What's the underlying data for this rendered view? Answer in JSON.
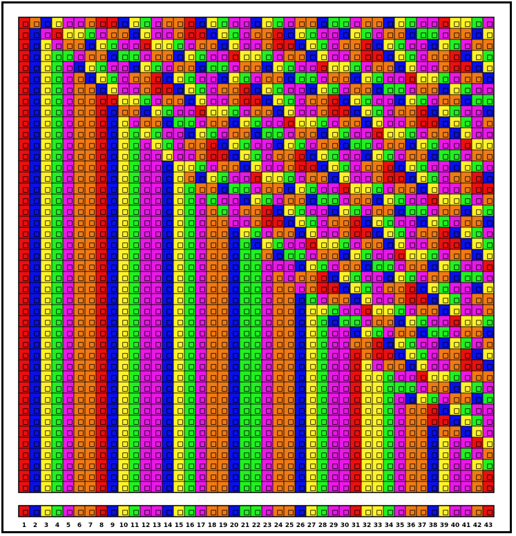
{
  "chart_data": {
    "type": "heatmap",
    "n_columns": 43,
    "n_rows": 43,
    "palette": [
      "#e81010",
      "#0a10e6",
      "#fff22a",
      "#22f022",
      "#e818e6",
      "#f07a14"
    ],
    "palette_names": [
      "red",
      "blue",
      "yellow",
      "green",
      "magenta",
      "orange"
    ],
    "column_labels": [
      "1",
      "2",
      "3",
      "4",
      "5",
      "6",
      "7",
      "8",
      "9",
      "10",
      "11",
      "12",
      "13",
      "14",
      "15",
      "16",
      "17",
      "18",
      "19",
      "20",
      "21",
      "22",
      "23",
      "24",
      "25",
      "26",
      "27",
      "28",
      "29",
      "30",
      "31",
      "32",
      "33",
      "34",
      "35",
      "36",
      "37",
      "38",
      "39",
      "40",
      "41",
      "42",
      "43"
    ],
    "key_row_color_index": [
      0,
      1,
      2,
      3,
      4,
      5,
      5,
      0,
      1,
      2,
      3,
      4,
      4,
      1,
      2,
      3,
      4,
      5,
      5,
      1,
      3,
      3,
      4,
      5,
      5,
      1,
      2,
      3,
      4,
      4,
      0,
      2,
      2,
      3,
      4,
      5,
      5,
      1,
      2,
      4,
      4,
      5,
      0
    ],
    "rule": "row_index_from_bottom r, column c: color = key[c] when c < (43 - r) else key[c - (43 - r)] (diagonal bands)"
  }
}
